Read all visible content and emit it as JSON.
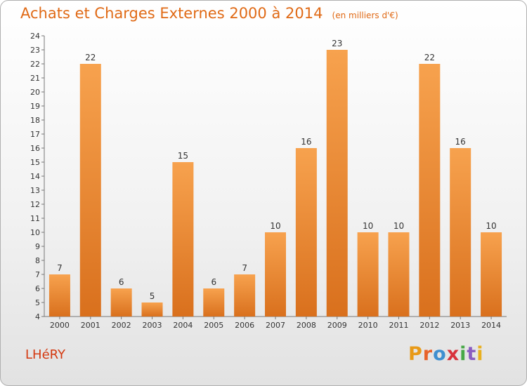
{
  "header": {
    "title": "Achats et Charges Externes 2000 à 2014",
    "unit": "(en milliers d'€)"
  },
  "footer": {
    "commune": "LHéRY",
    "logo_letters": [
      "P",
      "r",
      "o",
      "x",
      "i",
      "t",
      "i"
    ],
    "logo_colors": [
      "#e89a18",
      "#e8622a",
      "#3f8fd0",
      "#d8323c",
      "#48a848",
      "#8a5cc0",
      "#e8b020"
    ]
  },
  "chart_data": {
    "type": "bar",
    "title": "Achats et Charges Externes 2000 à 2014",
    "categories": [
      "2000",
      "2001",
      "2002",
      "2003",
      "2004",
      "2005",
      "2006",
      "2007",
      "2008",
      "2009",
      "2010",
      "2011",
      "2012",
      "2013",
      "2014"
    ],
    "values": [
      7,
      22,
      6,
      5,
      15,
      6,
      7,
      10,
      16,
      23,
      10,
      10,
      22,
      16,
      10
    ],
    "value_labels": [
      "7",
      "22",
      "6",
      "5",
      "15",
      "6",
      "7",
      "10",
      "16",
      "23",
      "10",
      "10",
      "22",
      "16",
      "10"
    ],
    "yticks": [
      "4",
      "5",
      "6",
      "7",
      "8",
      "9",
      "10",
      "11",
      "12",
      "13",
      "14",
      "15",
      "16",
      "17",
      "18",
      "19",
      "20",
      "21",
      "22",
      "23",
      "24"
    ],
    "ylim": [
      4,
      24
    ],
    "grid": false,
    "bar_color_top": "#f7a24e",
    "bar_color_bottom": "#d9701d"
  }
}
